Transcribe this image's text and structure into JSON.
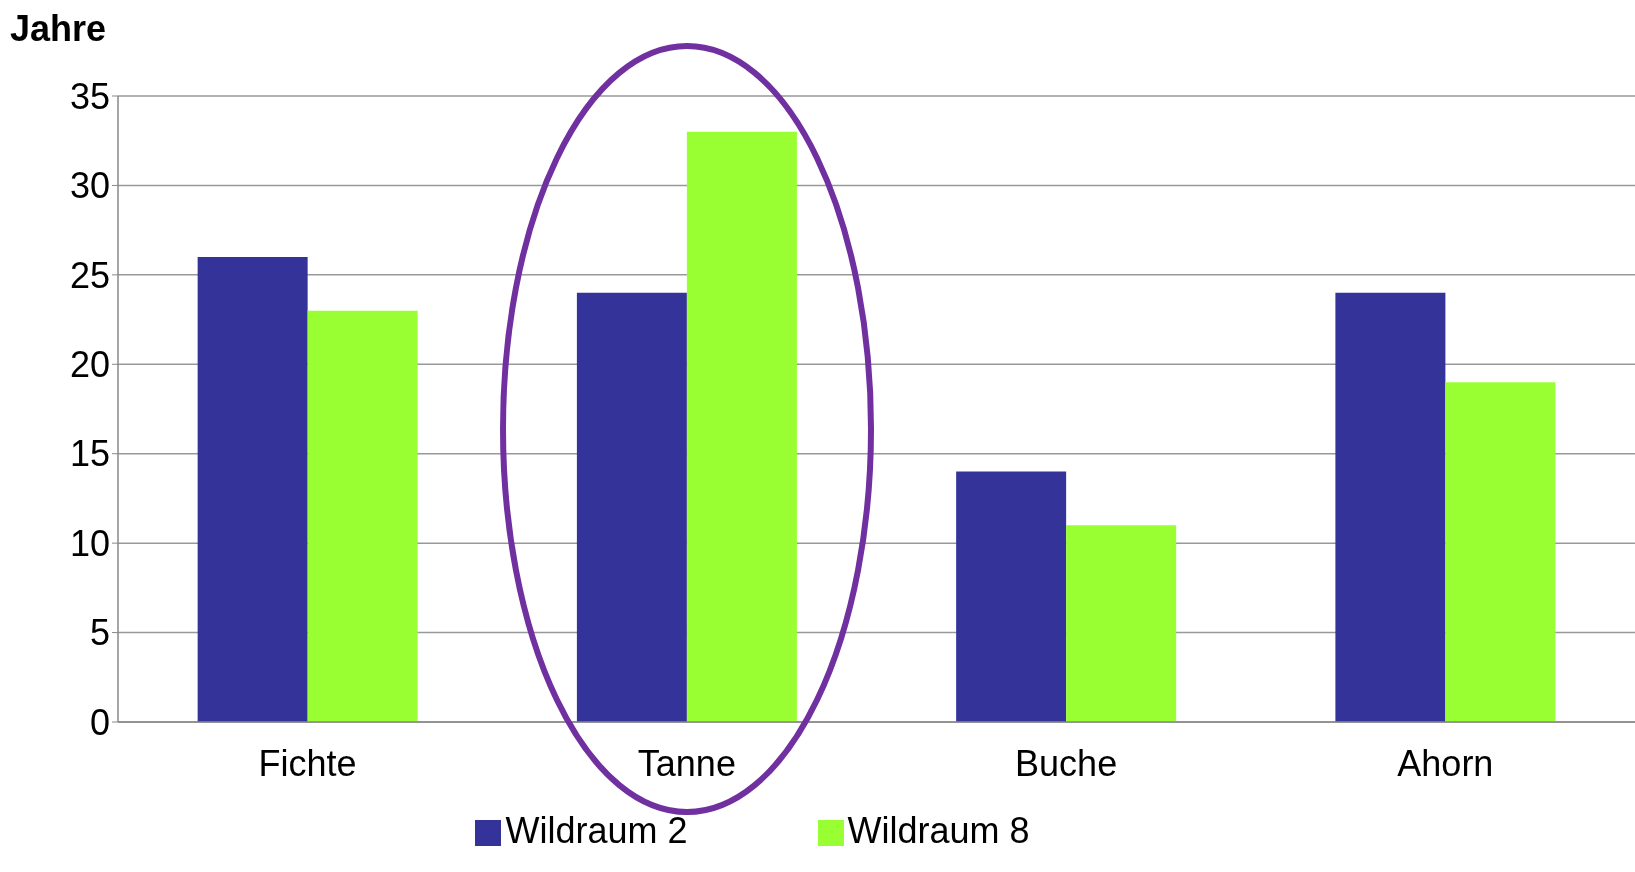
{
  "chart_data": {
    "type": "bar",
    "ylabel": "Jahre",
    "categories": [
      "Fichte",
      "Tanne",
      "Buche",
      "Ahorn"
    ],
    "series": [
      {
        "name": "Wildraum 2",
        "color": "#333399",
        "values": [
          26,
          24,
          14,
          24
        ]
      },
      {
        "name": "Wildraum 8",
        "color": "#99ff33",
        "values": [
          23,
          33,
          11,
          19
        ]
      }
    ],
    "ylim": [
      0,
      35
    ],
    "yticks": [
      0,
      5,
      10,
      15,
      20,
      25,
      30,
      35
    ],
    "grid": "y",
    "legend": "bottom"
  }
}
